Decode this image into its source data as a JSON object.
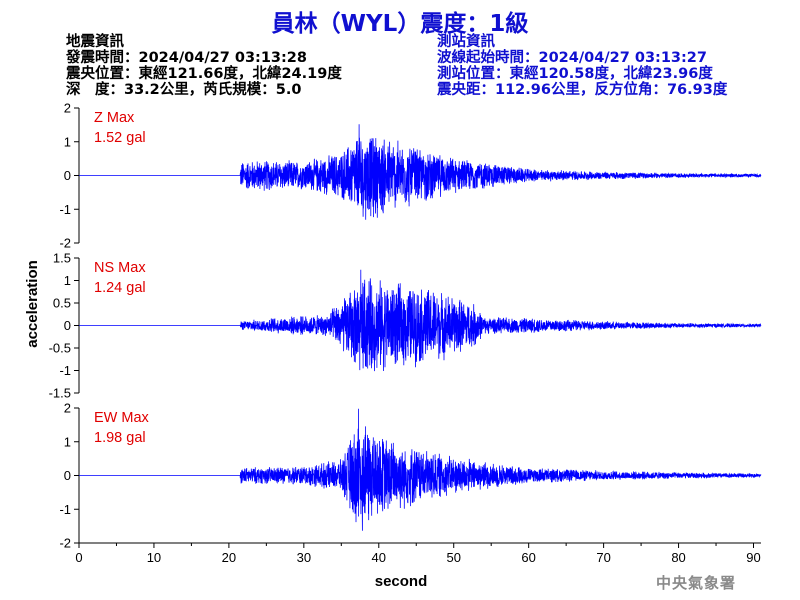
{
  "header": {
    "title": "員林（WYL）震度：1級"
  },
  "quake_info": {
    "heading": "地震資訊",
    "time": "發震時間：2024/04/27 03:13:28",
    "location": "震央位置：東經121.66度，北緯24.19度",
    "depth_mag": "深　度：33.2公里，芮氏規模：5.0"
  },
  "station_info": {
    "heading": "測站資訊",
    "wave_time": "波線起始時間：2024/04/27 03:13:27",
    "location": "測站位置：東經120.58度，北緯23.96度",
    "distance": "震央距：112.96公里，反方位角：76.93度"
  },
  "footer": {
    "agency": "中央氣象署"
  },
  "colors": {
    "trace": "#0000ff",
    "max_label": "#e00000",
    "title": "#1010d0",
    "axis": "#000000"
  },
  "chart_data": {
    "type": "line",
    "xlabel": "second",
    "ylabel": "acceleration",
    "xlim": [
      0,
      91
    ],
    "x_ticks": [
      0,
      10,
      20,
      30,
      40,
      50,
      60,
      70,
      80,
      90
    ],
    "panels": [
      {
        "name": "Z",
        "max_label": "Z Max",
        "max_value": "1.52 gal",
        "ylim": [
          -2,
          2
        ],
        "y_ticks": [
          2,
          1,
          0,
          -1,
          -2
        ],
        "y_tick_labels": [
          "2",
          "1",
          "0",
          "-1",
          "-2"
        ],
        "onset_s": 21.5,
        "peak_amp": 1.52,
        "envelope": [
          [
            0,
            0
          ],
          [
            21.4,
            0
          ],
          [
            21.6,
            0.45
          ],
          [
            24,
            0.5
          ],
          [
            30,
            0.45
          ],
          [
            35,
            0.75
          ],
          [
            37.5,
            1.4
          ],
          [
            40,
            1.3
          ],
          [
            45,
            0.9
          ],
          [
            50,
            0.55
          ],
          [
            55,
            0.4
          ],
          [
            60,
            0.2
          ],
          [
            70,
            0.12
          ],
          [
            80,
            0.07
          ],
          [
            91,
            0.05
          ]
        ]
      },
      {
        "name": "NS",
        "max_label": "NS Max",
        "max_value": "1.24 gal",
        "ylim": [
          -1.5,
          1.5
        ],
        "y_ticks": [
          1.5,
          1,
          0.5,
          0,
          -0.5,
          -1,
          -1.5
        ],
        "y_tick_labels": [
          "1.5",
          "1",
          "0.5",
          "0",
          "-0.5",
          "-1",
          "-1.5"
        ],
        "onset_s": 21.5,
        "peak_amp": 1.24,
        "envelope": [
          [
            0,
            0
          ],
          [
            21.4,
            0
          ],
          [
            21.6,
            0.1
          ],
          [
            27,
            0.2
          ],
          [
            33,
            0.25
          ],
          [
            36,
            0.8
          ],
          [
            38,
            1.2
          ],
          [
            42,
            1.0
          ],
          [
            47,
            0.9
          ],
          [
            53,
            0.5
          ],
          [
            54,
            0.2
          ],
          [
            60,
            0.18
          ],
          [
            70,
            0.1
          ],
          [
            80,
            0.06
          ],
          [
            91,
            0.04
          ]
        ]
      },
      {
        "name": "EW",
        "max_label": "EW Max",
        "max_value": "1.98 gal",
        "ylim": [
          -2,
          2
        ],
        "y_ticks": [
          2,
          1,
          0,
          -1,
          -2
        ],
        "y_tick_labels": [
          "2",
          "1",
          "0",
          "-1",
          "-2"
        ],
        "onset_s": 21.5,
        "peak_amp": 1.98,
        "envelope": [
          [
            0,
            0
          ],
          [
            21.4,
            0
          ],
          [
            21.6,
            0.25
          ],
          [
            30,
            0.3
          ],
          [
            35,
            0.5
          ],
          [
            37.5,
            1.9
          ],
          [
            40,
            1.3
          ],
          [
            45,
            0.9
          ],
          [
            50,
            0.6
          ],
          [
            55,
            0.4
          ],
          [
            60,
            0.25
          ],
          [
            70,
            0.15
          ],
          [
            80,
            0.1
          ],
          [
            91,
            0.06
          ]
        ]
      }
    ]
  }
}
